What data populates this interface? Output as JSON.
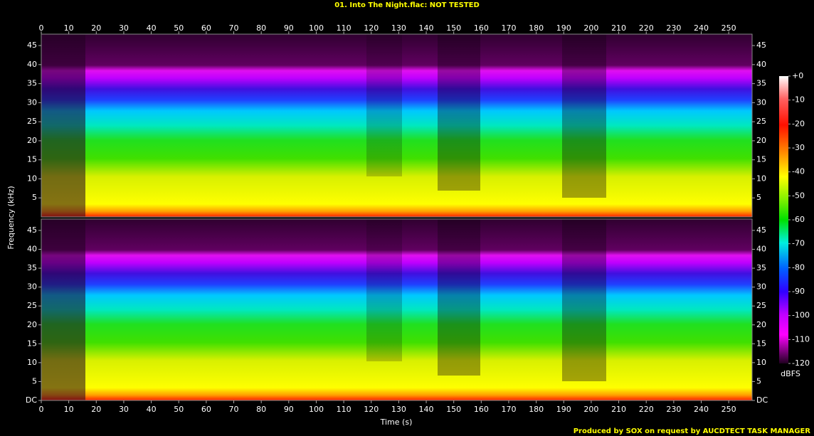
{
  "chart_data": {
    "type": "spectrogram",
    "title": "01. Into The Night.flac: NOT TESTED",
    "x_label": "Time (s)",
    "y_label": "Frequency (kHz)",
    "xlim": [
      0,
      258.5
    ],
    "xticks": [
      0,
      10,
      20,
      30,
      40,
      50,
      60,
      70,
      80,
      90,
      100,
      110,
      120,
      130,
      140,
      150,
      160,
      170,
      180,
      190,
      200,
      210,
      220,
      230,
      240,
      250
    ],
    "channels": [
      {
        "ylim": [
          0,
          48
        ],
        "yticks": [
          5,
          10,
          15,
          20,
          25,
          30,
          35,
          40,
          45
        ]
      },
      {
        "ylim": [
          0,
          48
        ],
        "yticks": [
          {
            "value": 0,
            "label": "DC"
          },
          5,
          10,
          15,
          20,
          25,
          30,
          35,
          40,
          45
        ]
      }
    ],
    "colorbar": {
      "label": "dBFS",
      "lim": [
        -120,
        0
      ],
      "ticks": [
        {
          "value": 0,
          "label": "+0"
        },
        -10,
        -20,
        -30,
        -40,
        -50,
        -60,
        -70,
        -80,
        -90,
        -100,
        -110,
        -120
      ]
    },
    "footer": "Produced by SOX on request by AUCDTECT TASK MANAGER"
  }
}
